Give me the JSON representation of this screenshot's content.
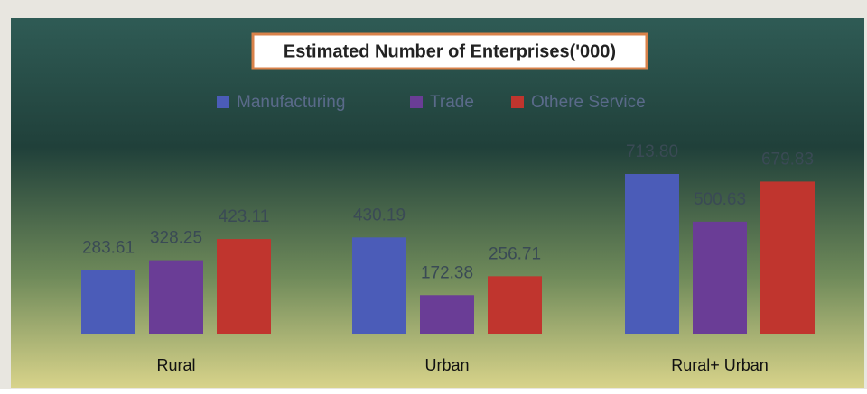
{
  "chart_data": {
    "type": "bar",
    "title": "Estimated Number of Enterprises('000)",
    "categories": [
      "Rural",
      "Urban",
      "Rural+ Urban"
    ],
    "series": [
      {
        "name": "Manufacturing",
        "color": "#4b5cb8",
        "values": [
          283.61,
          430.19,
          713.8
        ],
        "value_labels": [
          "283.61",
          "430.19",
          "713.80"
        ]
      },
      {
        "name": "Trade",
        "color": "#6a3d96",
        "values": [
          328.25,
          172.38,
          500.63
        ],
        "value_labels": [
          "328.25",
          "172.38",
          "500.63"
        ]
      },
      {
        "name": "Othere Service",
        "color": "#c0352e",
        "values": [
          423.11,
          256.71,
          679.83
        ],
        "value_labels": [
          "423.11",
          "256.71",
          "679.83"
        ]
      }
    ]
  }
}
